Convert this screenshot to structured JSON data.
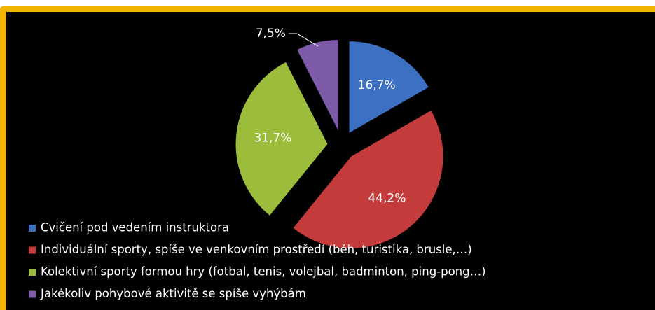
{
  "chart_data": {
    "type": "pie",
    "categories": [
      "Cvičení pod vedením instruktora",
      "Individuální sporty, spíše ve venkovním prostředí (běh, turistika,  brusle,…)",
      "Kolektivní sporty formou hry (fotbal, tenis, volejbal, badminton,  ping-pong…)",
      "Jakékoliv pohybové aktivitě  se spíše  vyhýbám"
    ],
    "values": [
      16.7,
      44.2,
      31.7,
      7.5
    ],
    "value_labels": [
      "16,7%",
      "44,2%",
      "31,7%",
      "7,5%"
    ],
    "colors": [
      "#3c70c2",
      "#c33b3a",
      "#9cbd3c",
      "#7d5ba8"
    ],
    "legend": "bottom-left"
  }
}
